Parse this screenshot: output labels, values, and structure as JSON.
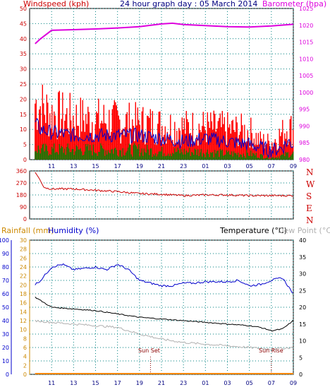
{
  "header": {
    "wind_title": "Windspeed (kph)",
    "chart_title": "24 hour graph day : 05 March 2014",
    "baro_title": "Barometer (hpa)",
    "rain_title": "Rainfall (mm)",
    "hum_title": "Humidity (%)",
    "temp_title": "Temperature (°C)",
    "dew_title": "Dew Point (°C)"
  },
  "colors": {
    "wind": "#ff0000",
    "gust_avg": "#0000cc",
    "wind_low": "#008000",
    "baro": "#dd00dd",
    "dir": "#cc0000",
    "rain": "#ff8800",
    "hum": "#0000cc",
    "temp": "#000000",
    "dew": "#b0b0b0",
    "axis_left": "#cc0000",
    "axis_right": "#dd00dd",
    "hum_axis": "#0000cc",
    "rain_axis": "#cc8800",
    "grid": "#008080",
    "event": "#8b0000"
  },
  "x_hours": [
    "11",
    "13",
    "15",
    "17",
    "19",
    "21",
    "23",
    "01",
    "03",
    "05",
    "07",
    "09"
  ],
  "chart_data": [
    {
      "type": "line",
      "title": "24 hour graph day : 05 March 2014",
      "ylabel_left": "Windspeed (kph)",
      "ylabel_right": "Barometer (hpa)",
      "ylim_left": [
        0,
        50
      ],
      "ylim_right": [
        980,
        1025
      ],
      "y_ticks_left": [
        "0",
        "5",
        "10",
        "15",
        "20",
        "25",
        "30",
        "35",
        "40",
        "45",
        "50"
      ],
      "y_ticks_right": [
        "980",
        "985",
        "990",
        "995",
        "1000",
        "1005",
        "1010",
        "1015",
        "1020",
        "1025"
      ],
      "x_hours": [
        9.5,
        10,
        11,
        13,
        15,
        17,
        19,
        21,
        22,
        23,
        25,
        27,
        29,
        31,
        33
      ],
      "series": [
        {
          "name": "Barometer (hpa)",
          "axis": "right",
          "values": [
            1014.5,
            1016,
            1018.5,
            1018.7,
            1018.9,
            1019.2,
            1019.6,
            1020.4,
            1020.6,
            1020.2,
            1019.9,
            1019.6,
            1019.5,
            1019.8,
            1020.3
          ]
        }
      ],
      "wind_envelope": {
        "hours": [
          9.5,
          10,
          11,
          13,
          15,
          17,
          19,
          21,
          23,
          25,
          27,
          29,
          30,
          31,
          32,
          32.5,
          33
        ],
        "gust_max": [
          30,
          28,
          24,
          22,
          21,
          20,
          19,
          18,
          17,
          17,
          16,
          15,
          10,
          9,
          14,
          18,
          15
        ],
        "avg": [
          12,
          10,
          9,
          8,
          8,
          8,
          8,
          7,
          6,
          7,
          6,
          5,
          4,
          3,
          4,
          6,
          5
        ],
        "low": [
          6,
          5,
          5,
          5,
          5,
          5,
          5,
          4,
          4,
          4,
          3,
          3,
          2,
          1,
          2,
          3,
          3
        ]
      }
    },
    {
      "type": "line",
      "ylabel_right": [
        "N",
        "W",
        "S",
        "E",
        "N"
      ],
      "ylim": [
        0,
        360
      ],
      "y_ticks": [
        "0",
        "90",
        "180",
        "270",
        "360"
      ],
      "series": [
        {
          "name": "Wind direction",
          "x_hours": [
            9.5,
            9.9,
            10.3,
            11,
            13,
            15,
            17,
            19,
            21,
            23,
            25,
            27,
            29,
            31,
            33
          ],
          "values": [
            350,
            300,
            235,
            225,
            225,
            215,
            205,
            190,
            185,
            175,
            180,
            180,
            175,
            175,
            175
          ]
        }
      ]
    },
    {
      "type": "line",
      "ylim_humidity": [
        0,
        100
      ],
      "ylim_rain": [
        0,
        30
      ],
      "ylim_temp": [
        0,
        40
      ],
      "y_ticks_humidity": [
        "0",
        "10",
        "20",
        "30",
        "40",
        "50",
        "60",
        "70",
        "80",
        "90",
        "100"
      ],
      "y_ticks_rain": [
        "0",
        "2",
        "4",
        "6",
        "8",
        "10",
        "12",
        "14",
        "16",
        "18",
        "20",
        "22",
        "24",
        "26",
        "28",
        "30"
      ],
      "y_ticks_temp": [
        "0",
        "5",
        "10",
        "15",
        "20",
        "25",
        "30",
        "35",
        "40"
      ],
      "annotations": [
        {
          "text": "Sun Set",
          "x_hour": 20
        },
        {
          "text": "Sun Rise",
          "x_hour": 31
        }
      ],
      "series": [
        {
          "name": "Humidity (%)",
          "axis": "humidity",
          "x_hours": [
            9.5,
            10,
            11,
            12,
            13,
            14,
            15,
            16,
            17,
            18,
            19,
            20,
            21,
            22,
            23,
            24,
            25,
            26,
            27,
            28,
            29,
            30,
            31,
            32,
            33
          ],
          "values": [
            67,
            70,
            80,
            82,
            78,
            79,
            80,
            78,
            82,
            78,
            70,
            68,
            66,
            66,
            68,
            68,
            69,
            69,
            69,
            70,
            66,
            67,
            70,
            72,
            60
          ]
        },
        {
          "name": "Temperature (°C)",
          "axis": "temp",
          "x_hours": [
            9.5,
            10,
            11,
            13,
            15,
            17,
            19,
            21,
            23,
            25,
            27,
            29,
            30,
            31,
            32,
            33
          ],
          "values": [
            23,
            22,
            20,
            19.5,
            19,
            18,
            17,
            16.5,
            16,
            15.5,
            15,
            14.5,
            14,
            13,
            13.5,
            16
          ]
        },
        {
          "name": "Dew Point (°C)",
          "axis": "temp",
          "x_hours": [
            9.5,
            11,
            13,
            15,
            17,
            19,
            21,
            23,
            25,
            27,
            29,
            31,
            33
          ],
          "values": [
            16,
            15.5,
            15,
            14.5,
            14,
            12,
            10.5,
            9.5,
            9,
            8.5,
            8,
            7.5,
            8
          ]
        },
        {
          "name": "Rainfall (mm)",
          "axis": "rain",
          "x_hours": [
            9.5,
            33
          ],
          "values": [
            0,
            0
          ]
        }
      ]
    }
  ]
}
